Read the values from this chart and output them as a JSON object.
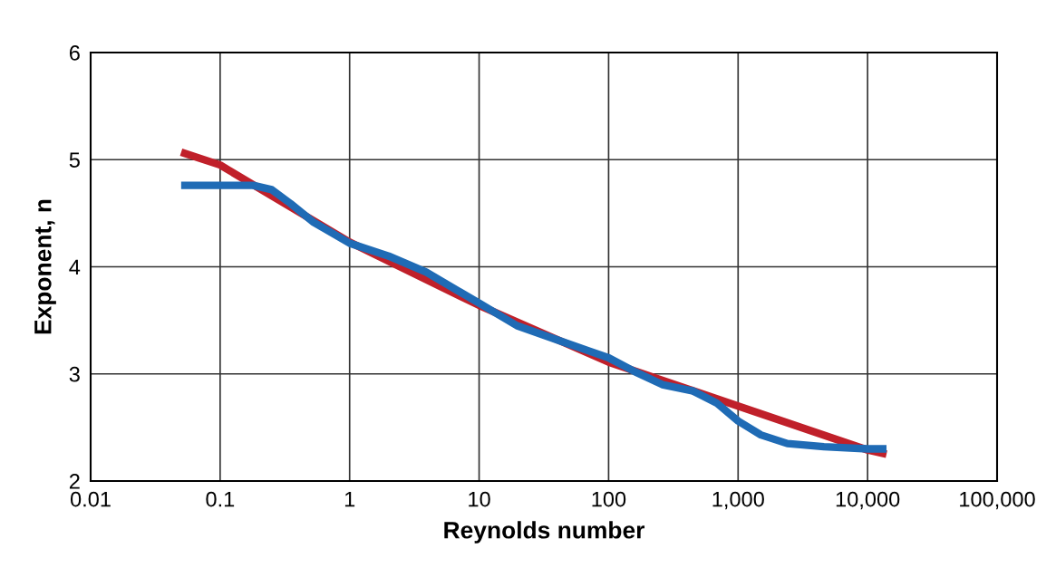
{
  "chart_data": {
    "type": "line",
    "xlabel": "Reynolds number",
    "ylabel": "Exponent, n",
    "log": "x",
    "xlim": [
      0.01,
      100000
    ],
    "xticks": [
      {
        "value": 0.01,
        "label": "0.01"
      },
      {
        "value": 0.1,
        "label": "0.1"
      },
      {
        "value": 1,
        "label": "1"
      },
      {
        "value": 10,
        "label": "10"
      },
      {
        "value": 100,
        "label": "100"
      },
      {
        "value": 1000,
        "label": "1,000"
      },
      {
        "value": 10000,
        "label": "10,000"
      },
      {
        "value": 100000,
        "label": "100,000"
      }
    ],
    "ylim": [
      2,
      6
    ],
    "yticks": [
      2,
      3,
      4,
      5,
      6
    ],
    "grid": true,
    "marker": "none",
    "line_style": "solid",
    "series": [
      {
        "color": "#c0202a",
        "x": [
          0.05,
          0.1,
          1,
          10,
          100,
          1000,
          10000,
          14000
        ],
        "values": [
          5.07,
          4.95,
          4.23,
          3.64,
          3.11,
          2.7,
          2.29,
          2.25
        ]
      },
      {
        "color": "#1f6bb5",
        "x": [
          0.05,
          0.18,
          0.25,
          0.35,
          0.52,
          1,
          2,
          3.9,
          10,
          19.6,
          44,
          72,
          100,
          160,
          260,
          450,
          680,
          1000,
          1500,
          2400,
          4600,
          10000,
          14000
        ],
        "values": [
          4.76,
          4.76,
          4.72,
          4.59,
          4.42,
          4.22,
          4.1,
          3.95,
          3.66,
          3.45,
          3.3,
          3.21,
          3.15,
          3.02,
          2.9,
          2.84,
          2.73,
          2.56,
          2.43,
          2.35,
          2.32,
          2.3,
          2.3
        ]
      }
    ]
  }
}
